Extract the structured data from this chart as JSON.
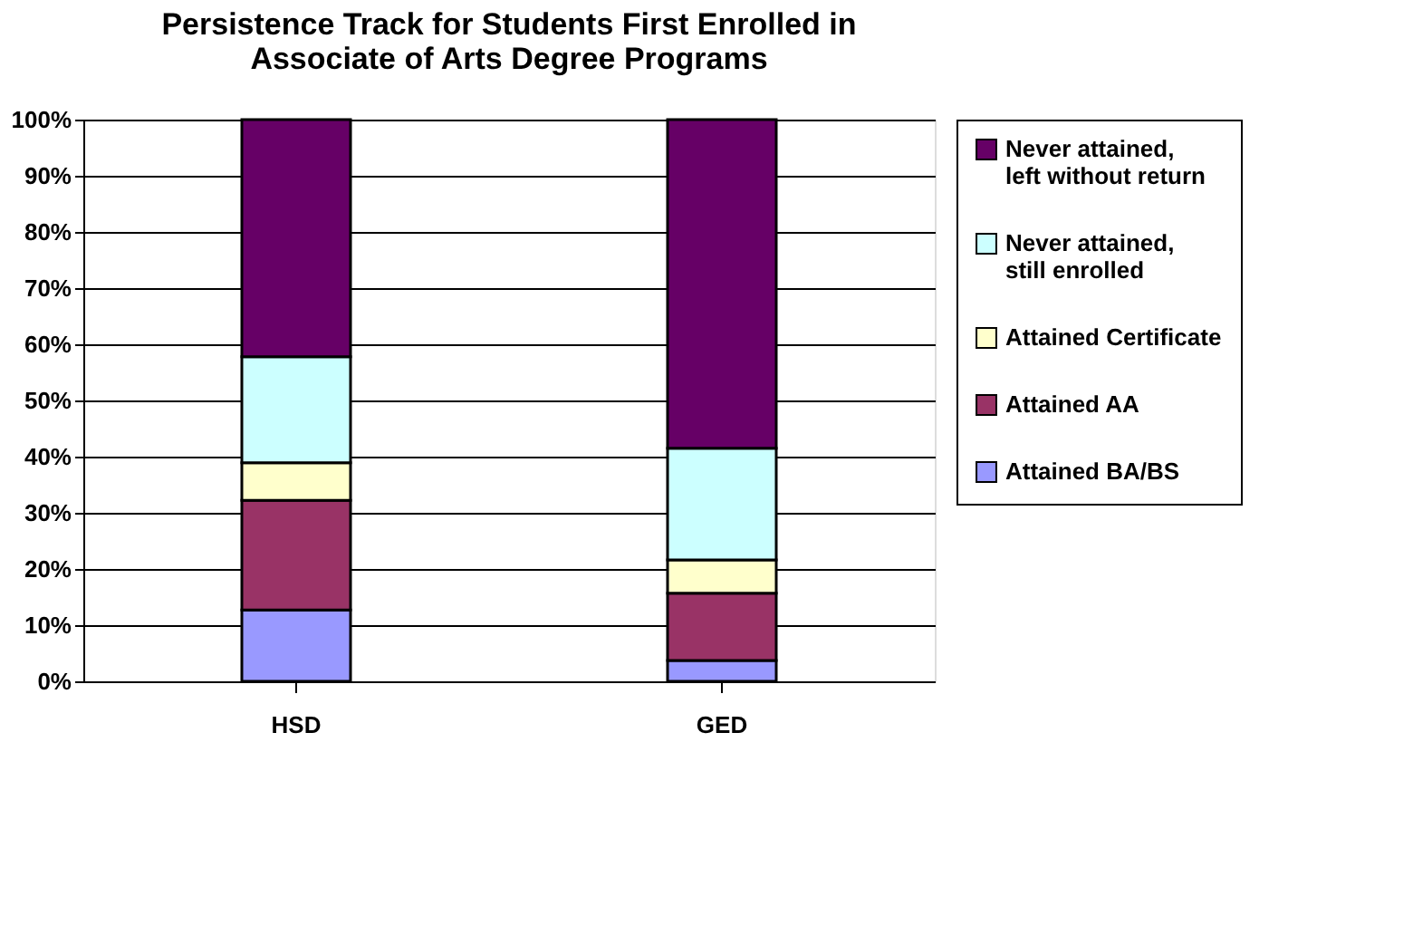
{
  "chart_data": {
    "type": "bar",
    "title": [
      "Persistence Track for Students First Enrolled in",
      "Associate of Arts Degree Programs"
    ],
    "categories": [
      "HSD",
      "GED"
    ],
    "stacked": true,
    "series": [
      {
        "name": "Attained BA/BS",
        "color": "#9999ff",
        "values": [
          12.7,
          3.7
        ]
      },
      {
        "name": "Attained AA",
        "color": "#993366",
        "values": [
          19.5,
          12.0
        ]
      },
      {
        "name": "Attained Certificate",
        "color": "#ffffcc",
        "values": [
          6.7,
          5.9
        ]
      },
      {
        "name": "Never attained, still enrolled",
        "color": "#ccffff",
        "values": [
          18.9,
          19.9
        ]
      },
      {
        "name": "Never attained, left without return",
        "color": "#660066",
        "values": [
          42.2,
          58.5
        ]
      }
    ],
    "ylim": [
      0,
      100
    ],
    "yticks": [
      {
        "value": 0,
        "label": "0%"
      },
      {
        "value": 10,
        "label": "10%"
      },
      {
        "value": 20,
        "label": "20%"
      },
      {
        "value": 30,
        "label": "30%"
      },
      {
        "value": 40,
        "label": "40%"
      },
      {
        "value": 50,
        "label": "50%"
      },
      {
        "value": 60,
        "label": "60%"
      },
      {
        "value": 70,
        "label": "70%"
      },
      {
        "value": 80,
        "label": "80%"
      },
      {
        "value": 90,
        "label": "90%"
      },
      {
        "value": 100,
        "label": "100%"
      }
    ],
    "grid": "y",
    "legend": "right"
  }
}
